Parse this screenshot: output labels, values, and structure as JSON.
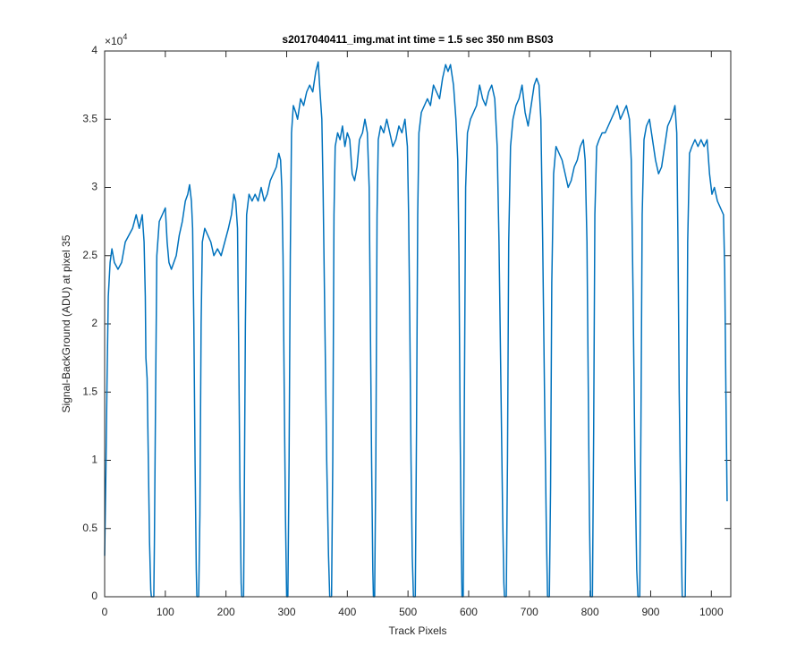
{
  "chart_data": {
    "type": "line",
    "title": "s2017040411_img.mat int time = 1.5 sec  350 nm BS03",
    "xlabel": "Track Pixels",
    "ylabel": "Signal-BackGround (ADU) at pixel 35",
    "y_exponent": {
      "base": "×10",
      "power": "4"
    },
    "xlim": [
      0,
      1032
    ],
    "ylim": [
      0,
      4
    ],
    "xticks": [
      0,
      100,
      200,
      300,
      400,
      500,
      600,
      700,
      800,
      900,
      1000
    ],
    "yticks": [
      0,
      0.5,
      1,
      1.5,
      2,
      2.5,
      3,
      3.5,
      4
    ],
    "series": [
      {
        "color": "#0072bd",
        "x": [
          0,
          2,
          4,
          6,
          9,
          12,
          16,
          22,
          28,
          34,
          40,
          46,
          52,
          57,
          62,
          65,
          67,
          68,
          70,
          72,
          74,
          76,
          77,
          81,
          82,
          84,
          86,
          90,
          95,
          100,
          103,
          106,
          110,
          114,
          118,
          123,
          128,
          133,
          137,
          140,
          143,
          145,
          147,
          149,
          151,
          152,
          155,
          157,
          159,
          161,
          165,
          170,
          175,
          180,
          186,
          192,
          198,
          204,
          209,
          213,
          216,
          219,
          221,
          223,
          225,
          226,
          229,
          230,
          232,
          234,
          238,
          243,
          248,
          253,
          258,
          263,
          268,
          273,
          278,
          283,
          287,
          290,
          292,
          294,
          296,
          298,
          300,
          302,
          304,
          306,
          308,
          311,
          315,
          318,
          323,
          328,
          333,
          338,
          343,
          348,
          352,
          355,
          358,
          360,
          363,
          366,
          369,
          371,
          374,
          376,
          378,
          380,
          384,
          388,
          392,
          396,
          400,
          404,
          408,
          412,
          416,
          420,
          425,
          429,
          433,
          436,
          438,
          440,
          442,
          443,
          445,
          447,
          449,
          451,
          455,
          460,
          465,
          470,
          475,
          480,
          485,
          490,
          495,
          499,
          501,
          503,
          505,
          507,
          509,
          512,
          514,
          516,
          518,
          522,
          527,
          532,
          537,
          542,
          547,
          552,
          557,
          562,
          566,
          570,
          575,
          579,
          582,
          584,
          586,
          588,
          589,
          591,
          593,
          595,
          598,
          603,
          608,
          613,
          618,
          623,
          628,
          633,
          638,
          643,
          647,
          650,
          653,
          656,
          658,
          659,
          662,
          664,
          666,
          669,
          673,
          678,
          683,
          688,
          693,
          698,
          703,
          708,
          712,
          716,
          719,
          722,
          725,
          728,
          730,
          733,
          735,
          737,
          740,
          744,
          749,
          754,
          759,
          764,
          769,
          774,
          779,
          784,
          789,
          792,
          795,
          797,
          799,
          801,
          804,
          806,
          808,
          811,
          815,
          820,
          825,
          830,
          835,
          840,
          845,
          850,
          855,
          860,
          865,
          868,
          871,
          874,
          877,
          879,
          882,
          884,
          886,
          889,
          893,
          898,
          903,
          908,
          913,
          918,
          923,
          928,
          933,
          937,
          940,
          943,
          945,
          947,
          950,
          952,
          957,
          959,
          961,
          964,
          968,
          973,
          978,
          983,
          988,
          993,
          997,
          1001,
          1005,
          1010,
          1015,
          1020,
          1022,
          1024,
          1026
        ],
        "values": [
          0.3,
          0.9,
          1.6,
          2.2,
          2.45,
          2.55,
          2.45,
          2.4,
          2.45,
          2.6,
          2.65,
          2.7,
          2.8,
          2.7,
          2.8,
          2.6,
          2.2,
          1.75,
          1.6,
          1.0,
          0.4,
          0.05,
          0,
          0,
          0.4,
          1.5,
          2.5,
          2.75,
          2.8,
          2.85,
          2.6,
          2.45,
          2.4,
          2.45,
          2.5,
          2.65,
          2.75,
          2.9,
          2.95,
          3.02,
          2.9,
          2.7,
          2.0,
          1.0,
          0.2,
          0,
          0,
          0.6,
          2.0,
          2.6,
          2.7,
          2.65,
          2.6,
          2.5,
          2.55,
          2.5,
          2.6,
          2.7,
          2.8,
          2.95,
          2.9,
          2.7,
          1.8,
          0.8,
          0.1,
          0,
          0,
          0.6,
          2.0,
          2.8,
          2.95,
          2.9,
          2.95,
          2.9,
          3.0,
          2.9,
          2.95,
          3.05,
          3.1,
          3.15,
          3.25,
          3.2,
          3.0,
          2.5,
          1.5,
          0.6,
          0,
          0,
          1.0,
          2.5,
          3.4,
          3.6,
          3.55,
          3.5,
          3.65,
          3.6,
          3.7,
          3.75,
          3.7,
          3.85,
          3.92,
          3.7,
          3.5,
          3.0,
          2.0,
          1.0,
          0.3,
          0,
          0,
          1.0,
          2.8,
          3.3,
          3.4,
          3.35,
          3.45,
          3.3,
          3.4,
          3.35,
          3.1,
          3.05,
          3.15,
          3.35,
          3.4,
          3.5,
          3.4,
          3.0,
          2.0,
          1.0,
          0.2,
          0,
          0,
          1.0,
          2.8,
          3.35,
          3.45,
          3.4,
          3.5,
          3.4,
          3.3,
          3.35,
          3.45,
          3.4,
          3.5,
          3.3,
          2.8,
          2.0,
          1.0,
          0.3,
          0,
          0,
          1.2,
          2.8,
          3.4,
          3.55,
          3.6,
          3.65,
          3.6,
          3.75,
          3.7,
          3.65,
          3.8,
          3.9,
          3.85,
          3.9,
          3.75,
          3.5,
          3.2,
          2.5,
          1.2,
          0.3,
          0,
          0,
          1.5,
          3.0,
          3.4,
          3.5,
          3.55,
          3.6,
          3.75,
          3.65,
          3.6,
          3.7,
          3.75,
          3.65,
          3.3,
          2.6,
          1.6,
          0.6,
          0.1,
          0,
          0,
          1.0,
          2.6,
          3.3,
          3.5,
          3.6,
          3.65,
          3.75,
          3.55,
          3.45,
          3.6,
          3.75,
          3.8,
          3.75,
          3.5,
          2.6,
          1.5,
          0.5,
          0,
          0,
          0.8,
          2.3,
          3.1,
          3.3,
          3.25,
          3.2,
          3.1,
          3.0,
          3.05,
          3.15,
          3.2,
          3.3,
          3.35,
          3.2,
          2.6,
          1.6,
          0.6,
          0,
          0,
          1.2,
          2.8,
          3.3,
          3.35,
          3.4,
          3.4,
          3.45,
          3.5,
          3.55,
          3.6,
          3.5,
          3.55,
          3.6,
          3.5,
          3.2,
          2.2,
          1.0,
          0.2,
          0,
          0,
          1.3,
          2.8,
          3.35,
          3.45,
          3.5,
          3.35,
          3.2,
          3.1,
          3.15,
          3.3,
          3.45,
          3.5,
          3.55,
          3.6,
          3.4,
          2.6,
          1.5,
          0.5,
          0,
          0,
          1.0,
          2.6,
          3.25,
          3.3,
          3.35,
          3.3,
          3.35,
          3.3,
          3.35,
          3.1,
          2.95,
          3.0,
          2.9,
          2.85,
          2.8,
          2.4,
          1.5,
          0.7
        ]
      }
    ]
  }
}
